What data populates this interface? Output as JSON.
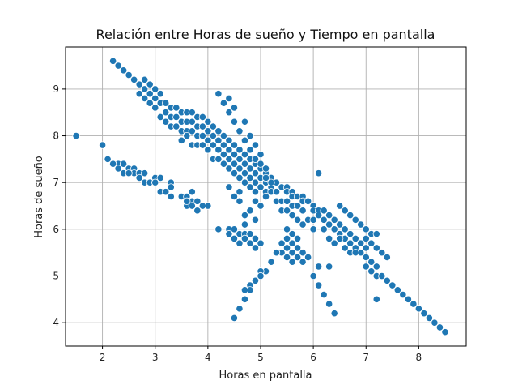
{
  "chart_data": {
    "type": "scatter",
    "title": "Relación entre Horas de sueño y Tiempo en pantalla",
    "xlabel": "Horas en pantalla",
    "ylabel": "Horas de sueño",
    "xlim": [
      1.3,
      8.9
    ],
    "ylim": [
      3.5,
      9.9
    ],
    "xticks": [
      "2",
      "3",
      "4",
      "5",
      "6",
      "7",
      "8"
    ],
    "yticks": [
      "4",
      "5",
      "6",
      "7",
      "8",
      "9"
    ],
    "grid": true,
    "color": "#1f77b4",
    "points": [
      [
        1.5,
        8.0
      ],
      [
        2.0,
        7.8
      ],
      [
        2.1,
        7.5
      ],
      [
        2.2,
        7.4
      ],
      [
        2.3,
        7.4
      ],
      [
        2.3,
        7.3
      ],
      [
        2.4,
        7.4
      ],
      [
        2.4,
        7.2
      ],
      [
        2.5,
        7.3
      ],
      [
        2.6,
        7.3
      ],
      [
        2.6,
        7.2
      ],
      [
        2.7,
        7.2
      ],
      [
        2.7,
        7.1
      ],
      [
        2.8,
        7.2
      ],
      [
        2.8,
        7.0
      ],
      [
        2.9,
        7.0
      ],
      [
        3.0,
        7.1
      ],
      [
        3.0,
        7.0
      ],
      [
        3.1,
        7.1
      ],
      [
        3.1,
        6.8
      ],
      [
        3.2,
        6.8
      ],
      [
        3.3,
        7.0
      ],
      [
        3.3,
        6.9
      ],
      [
        3.3,
        6.7
      ],
      [
        3.5,
        6.7
      ],
      [
        3.6,
        6.7
      ],
      [
        3.6,
        6.5
      ],
      [
        3.7,
        6.8
      ],
      [
        3.7,
        6.6
      ],
      [
        3.7,
        6.5
      ],
      [
        3.8,
        6.6
      ],
      [
        3.8,
        6.4
      ],
      [
        3.9,
        6.5
      ],
      [
        4.0,
        6.5
      ],
      [
        2.2,
        9.6
      ],
      [
        2.3,
        9.5
      ],
      [
        2.4,
        9.4
      ],
      [
        2.5,
        9.3
      ],
      [
        2.6,
        9.2
      ],
      [
        2.7,
        9.1
      ],
      [
        2.7,
        8.9
      ],
      [
        2.8,
        9.2
      ],
      [
        2.8,
        9.0
      ],
      [
        2.8,
        8.8
      ],
      [
        2.9,
        9.1
      ],
      [
        2.9,
        8.9
      ],
      [
        2.9,
        8.7
      ],
      [
        3.0,
        9.0
      ],
      [
        3.0,
        8.8
      ],
      [
        3.0,
        8.6
      ],
      [
        3.1,
        8.9
      ],
      [
        3.1,
        8.7
      ],
      [
        3.1,
        8.4
      ],
      [
        3.2,
        8.7
      ],
      [
        3.2,
        8.5
      ],
      [
        3.2,
        8.3
      ],
      [
        3.3,
        8.6
      ],
      [
        3.3,
        8.4
      ],
      [
        3.3,
        8.2
      ],
      [
        3.4,
        8.6
      ],
      [
        3.4,
        8.4
      ],
      [
        3.4,
        8.2
      ],
      [
        3.5,
        8.5
      ],
      [
        3.5,
        8.3
      ],
      [
        3.5,
        8.1
      ],
      [
        3.5,
        7.9
      ],
      [
        3.6,
        8.5
      ],
      [
        3.6,
        8.3
      ],
      [
        3.6,
        8.1
      ],
      [
        3.6,
        8.0
      ],
      [
        3.7,
        8.5
      ],
      [
        3.7,
        8.3
      ],
      [
        3.7,
        8.1
      ],
      [
        3.7,
        7.8
      ],
      [
        3.8,
        8.4
      ],
      [
        3.8,
        8.2
      ],
      [
        3.8,
        8.0
      ],
      [
        3.8,
        7.8
      ],
      [
        3.9,
        8.4
      ],
      [
        3.9,
        8.2
      ],
      [
        3.9,
        8.0
      ],
      [
        3.9,
        7.8
      ],
      [
        4.0,
        8.3
      ],
      [
        4.0,
        8.1
      ],
      [
        4.0,
        7.9
      ],
      [
        4.0,
        7.7
      ],
      [
        4.1,
        8.2
      ],
      [
        4.1,
        8.0
      ],
      [
        4.1,
        7.8
      ],
      [
        4.1,
        7.5
      ],
      [
        4.2,
        8.1
      ],
      [
        4.2,
        7.9
      ],
      [
        4.2,
        7.7
      ],
      [
        4.2,
        7.5
      ],
      [
        4.3,
        8.0
      ],
      [
        4.3,
        7.8
      ],
      [
        4.3,
        7.6
      ],
      [
        4.3,
        7.4
      ],
      [
        4.4,
        7.9
      ],
      [
        4.4,
        7.7
      ],
      [
        4.4,
        7.5
      ],
      [
        4.4,
        7.3
      ],
      [
        4.5,
        7.8
      ],
      [
        4.5,
        7.6
      ],
      [
        4.5,
        7.4
      ],
      [
        4.5,
        7.2
      ],
      [
        4.6,
        7.7
      ],
      [
        4.6,
        7.5
      ],
      [
        4.6,
        7.3
      ],
      [
        4.6,
        7.1
      ],
      [
        4.7,
        7.6
      ],
      [
        4.7,
        7.4
      ],
      [
        4.7,
        7.2
      ],
      [
        4.7,
        7.0
      ],
      [
        4.8,
        7.5
      ],
      [
        4.8,
        7.3
      ],
      [
        4.8,
        7.1
      ],
      [
        4.8,
        6.9
      ],
      [
        4.9,
        7.4
      ],
      [
        4.9,
        7.2
      ],
      [
        4.9,
        7.0
      ],
      [
        4.9,
        6.8
      ],
      [
        5.0,
        7.3
      ],
      [
        5.0,
        7.1
      ],
      [
        5.0,
        6.9
      ],
      [
        5.1,
        7.2
      ],
      [
        5.1,
        7.0
      ],
      [
        5.1,
        6.8
      ],
      [
        5.2,
        7.1
      ],
      [
        5.2,
        6.9
      ],
      [
        5.3,
        7.0
      ],
      [
        5.3,
        6.8
      ],
      [
        5.4,
        6.9
      ],
      [
        5.5,
        6.9
      ],
      [
        5.5,
        6.8
      ],
      [
        5.6,
        6.8
      ],
      [
        5.6,
        6.7
      ],
      [
        5.7,
        6.7
      ],
      [
        5.8,
        6.7
      ],
      [
        5.8,
        6.6
      ],
      [
        5.9,
        6.6
      ],
      [
        6.0,
        6.5
      ],
      [
        6.0,
        6.4
      ],
      [
        6.1,
        6.4
      ],
      [
        6.1,
        6.3
      ],
      [
        6.2,
        6.4
      ],
      [
        6.2,
        6.2
      ],
      [
        6.3,
        6.3
      ],
      [
        6.3,
        6.1
      ],
      [
        6.4,
        6.2
      ],
      [
        6.4,
        6.0
      ],
      [
        6.5,
        6.1
      ],
      [
        6.5,
        5.9
      ],
      [
        6.6,
        6.0
      ],
      [
        6.6,
        5.8
      ],
      [
        6.7,
        5.9
      ],
      [
        6.7,
        5.7
      ],
      [
        6.8,
        5.8
      ],
      [
        6.8,
        5.6
      ],
      [
        6.9,
        5.7
      ],
      [
        6.9,
        5.5
      ],
      [
        7.0,
        5.6
      ],
      [
        7.0,
        5.4
      ],
      [
        7.0,
        5.2
      ],
      [
        7.1,
        5.3
      ],
      [
        7.1,
        5.1
      ],
      [
        7.2,
        5.2
      ],
      [
        7.2,
        5.0
      ],
      [
        7.3,
        5.0
      ],
      [
        7.4,
        4.9
      ],
      [
        7.5,
        4.8
      ],
      [
        7.6,
        4.7
      ],
      [
        7.7,
        4.6
      ],
      [
        7.8,
        4.5
      ],
      [
        7.9,
        4.4
      ],
      [
        8.0,
        4.3
      ],
      [
        8.1,
        4.2
      ],
      [
        8.2,
        4.1
      ],
      [
        8.3,
        4.0
      ],
      [
        8.4,
        3.9
      ],
      [
        8.5,
        3.8
      ],
      [
        4.2,
        8.9
      ],
      [
        4.3,
        8.7
      ],
      [
        4.4,
        8.8
      ],
      [
        4.4,
        8.5
      ],
      [
        4.5,
        8.6
      ],
      [
        4.5,
        8.3
      ],
      [
        4.6,
        8.1
      ],
      [
        4.7,
        8.3
      ],
      [
        4.7,
        7.9
      ],
      [
        4.8,
        8.0
      ],
      [
        4.8,
        7.7
      ],
      [
        4.9,
        7.8
      ],
      [
        4.9,
        7.5
      ],
      [
        5.0,
        7.6
      ],
      [
        5.0,
        7.4
      ],
      [
        5.1,
        7.3
      ],
      [
        5.1,
        7.1
      ],
      [
        5.2,
        7.0
      ],
      [
        5.2,
        6.8
      ],
      [
        5.3,
        6.8
      ],
      [
        5.3,
        6.6
      ],
      [
        5.4,
        6.6
      ],
      [
        5.4,
        6.4
      ],
      [
        5.5,
        6.6
      ],
      [
        5.5,
        6.4
      ],
      [
        5.6,
        6.5
      ],
      [
        5.6,
        6.3
      ],
      [
        5.7,
        6.5
      ],
      [
        5.7,
        6.2
      ],
      [
        5.8,
        6.4
      ],
      [
        5.8,
        6.1
      ],
      [
        5.9,
        6.2
      ],
      [
        6.0,
        6.2
      ],
      [
        6.0,
        6.0
      ],
      [
        6.1,
        6.3
      ],
      [
        6.1,
        7.2
      ],
      [
        6.2,
        6.0
      ],
      [
        6.3,
        6.1
      ],
      [
        6.3,
        5.8
      ],
      [
        6.4,
        6.0
      ],
      [
        6.4,
        5.7
      ],
      [
        6.5,
        6.5
      ],
      [
        6.5,
        5.8
      ],
      [
        6.6,
        6.4
      ],
      [
        6.6,
        5.6
      ],
      [
        6.7,
        6.3
      ],
      [
        6.7,
        5.5
      ],
      [
        6.8,
        6.2
      ],
      [
        6.8,
        5.5
      ],
      [
        6.9,
        6.1
      ],
      [
        7.0,
        6.0
      ],
      [
        7.0,
        5.8
      ],
      [
        7.1,
        5.9
      ],
      [
        7.1,
        5.7
      ],
      [
        7.2,
        5.9
      ],
      [
        7.2,
        5.6
      ],
      [
        7.3,
        5.5
      ],
      [
        7.4,
        5.4
      ],
      [
        7.2,
        4.5
      ],
      [
        4.6,
        6.6
      ],
      [
        4.7,
        6.3
      ],
      [
        4.8,
        6.4
      ],
      [
        4.9,
        6.6
      ],
      [
        5.0,
        6.5
      ],
      [
        5.1,
        6.7
      ],
      [
        4.6,
        6.8
      ],
      [
        4.5,
        6.7
      ],
      [
        4.4,
        6.9
      ],
      [
        4.7,
        6.1
      ],
      [
        4.9,
        6.2
      ],
      [
        4.2,
        6.0
      ],
      [
        4.4,
        6.0
      ],
      [
        4.4,
        5.9
      ],
      [
        4.5,
        6.0
      ],
      [
        4.5,
        5.8
      ],
      [
        4.6,
        5.9
      ],
      [
        4.6,
        5.7
      ],
      [
        4.7,
        5.9
      ],
      [
        4.7,
        5.8
      ],
      [
        4.8,
        5.9
      ],
      [
        4.8,
        5.7
      ],
      [
        4.9,
        5.8
      ],
      [
        4.9,
        5.6
      ],
      [
        5.0,
        5.7
      ],
      [
        5.4,
        5.7
      ],
      [
        5.4,
        5.5
      ],
      [
        5.5,
        6.0
      ],
      [
        5.5,
        5.8
      ],
      [
        5.5,
        5.6
      ],
      [
        5.5,
        5.4
      ],
      [
        5.6,
        5.9
      ],
      [
        5.6,
        5.7
      ],
      [
        5.6,
        5.5
      ],
      [
        5.6,
        5.3
      ],
      [
        5.7,
        5.8
      ],
      [
        5.7,
        5.6
      ],
      [
        5.7,
        5.4
      ],
      [
        5.8,
        5.5
      ],
      [
        5.8,
        5.3
      ],
      [
        5.9,
        5.4
      ],
      [
        5.3,
        5.5
      ],
      [
        5.2,
        5.3
      ],
      [
        5.1,
        5.1
      ],
      [
        5.0,
        5.1
      ],
      [
        5.0,
        5.0
      ],
      [
        4.9,
        4.9
      ],
      [
        4.8,
        4.8
      ],
      [
        4.8,
        4.7
      ],
      [
        4.7,
        4.7
      ],
      [
        4.7,
        4.5
      ],
      [
        4.6,
        4.3
      ],
      [
        4.5,
        4.1
      ],
      [
        6.0,
        5.0
      ],
      [
        6.1,
        5.2
      ],
      [
        6.1,
        4.8
      ],
      [
        6.2,
        4.6
      ],
      [
        6.3,
        5.2
      ],
      [
        6.3,
        4.4
      ],
      [
        6.4,
        4.2
      ],
      [
        2.2,
        7.4
      ],
      [
        2.5,
        7.2
      ],
      [
        3.0,
        7.0
      ],
      [
        3.6,
        6.6
      ],
      [
        3.9,
        6.5
      ]
    ]
  }
}
